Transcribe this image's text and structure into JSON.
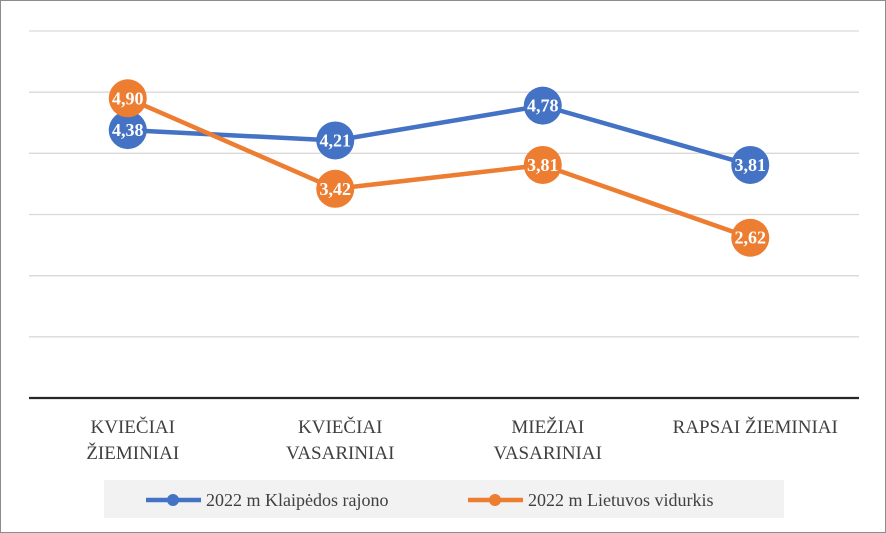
{
  "chart_data": {
    "type": "line",
    "categories": [
      [
        "KVIEČIAI",
        "ŽIEMINIAI"
      ],
      [
        "KVIEČIAI",
        "VASARINIAI"
      ],
      [
        "MIEŽIAI",
        "VASARINIAI"
      ],
      [
        "RAPSAI ŽIEMINIAI"
      ]
    ],
    "series": [
      {
        "name": "2022 m Klaipėdos rajono",
        "color": "#4472C4",
        "values": [
          4.38,
          4.21,
          4.78,
          3.81
        ],
        "labels": [
          "4,38",
          "4,21",
          "4,78",
          "3,81"
        ]
      },
      {
        "name": "2022 m Lietuvos vidurkis",
        "color": "#ED7D31",
        "values": [
          4.9,
          3.42,
          3.81,
          2.62
        ],
        "labels": [
          "4,90",
          "3,42",
          "3,81",
          "2,62"
        ]
      }
    ],
    "ylim": [
      0,
      6
    ],
    "y_ticks": [
      0,
      1,
      2,
      3,
      4,
      5,
      6
    ],
    "y_tick_labels_shown": false,
    "grid": true,
    "legend_position": "bottom",
    "title": "",
    "xlabel": "",
    "ylabel": ""
  }
}
